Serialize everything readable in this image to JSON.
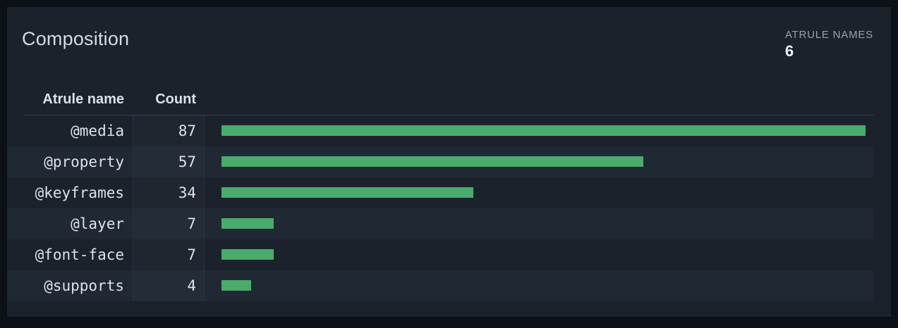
{
  "card": {
    "title": "Composition",
    "aggregate": {
      "label": "ATRULE NAMES",
      "value": "6"
    }
  },
  "table": {
    "columns": [
      "Atrule name",
      "Count"
    ]
  },
  "chart_data": {
    "type": "bar",
    "orientation": "horizontal",
    "title": "Composition",
    "categories": [
      "@media",
      "@property",
      "@keyframes",
      "@layer",
      "@font-face",
      "@supports"
    ],
    "values": [
      87,
      57,
      34,
      7,
      7,
      4
    ],
    "xlabel": "Count",
    "ylabel": "Atrule name",
    "xlim": [
      0,
      87
    ],
    "grid": false,
    "legend": false,
    "bar_color": "#4aab6c"
  },
  "colors": {
    "page_background": "#0c1117",
    "card_background": "#1b222c",
    "row_stripe": "#202834",
    "bar_green": "#4aab6c",
    "divider": "#2b3340",
    "header_border": "#3c4452",
    "title_text": "#d7dbe0",
    "cell_text": "#dde2e8",
    "muted_label": "#98a2ac"
  }
}
